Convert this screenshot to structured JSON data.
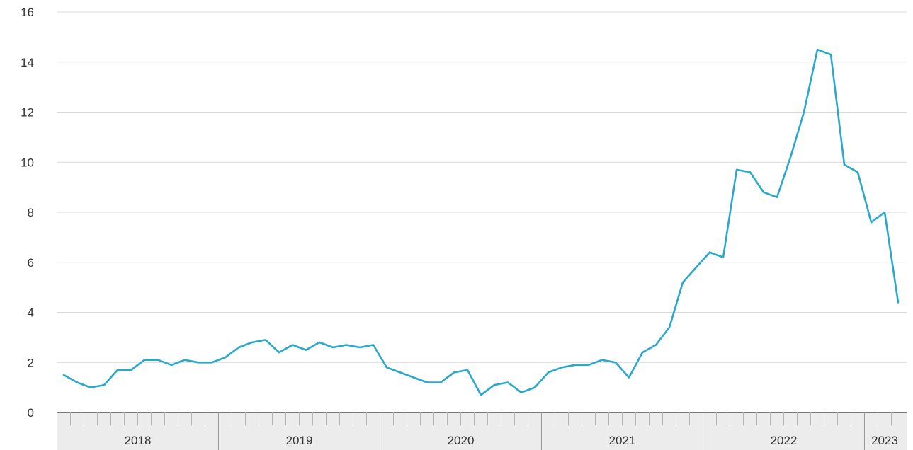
{
  "chart_data": {
    "type": "line",
    "title": "",
    "xlabel": "",
    "ylabel": "",
    "ylim": [
      0,
      16
    ],
    "y_ticks": [
      "0",
      "2",
      "4",
      "6",
      "8",
      "10",
      "12",
      "14",
      "16"
    ],
    "x_axis_labels": [
      "2018",
      "2019",
      "2020",
      "2021",
      "2022",
      "2023"
    ],
    "grid": "horizontal",
    "legend": "none",
    "line_color": "#29a8cc",
    "series": [
      {
        "x": [
          "2018-01",
          "2018-02",
          "2018-03",
          "2018-04",
          "2018-05",
          "2018-06",
          "2018-07",
          "2018-08",
          "2018-09",
          "2018-10",
          "2018-11",
          "2018-12",
          "2019-01",
          "2019-02",
          "2019-03",
          "2019-04",
          "2019-05",
          "2019-06",
          "2019-07",
          "2019-08",
          "2019-09",
          "2019-10",
          "2019-11",
          "2019-12",
          "2020-01",
          "2020-02",
          "2020-03",
          "2020-04",
          "2020-05",
          "2020-06",
          "2020-07",
          "2020-08",
          "2020-09",
          "2020-10",
          "2020-11",
          "2020-12",
          "2021-01",
          "2021-02",
          "2021-03",
          "2021-04",
          "2021-05",
          "2021-06",
          "2021-07",
          "2021-08",
          "2021-09",
          "2021-10",
          "2021-11",
          "2021-12",
          "2022-01",
          "2022-02",
          "2022-03",
          "2022-04",
          "2022-05",
          "2022-06",
          "2022-07",
          "2022-08",
          "2022-09",
          "2022-10",
          "2022-11",
          "2022-12",
          "2023-01",
          "2023-02",
          "2023-03"
        ],
        "values": [
          1.5,
          1.2,
          1.0,
          1.1,
          1.7,
          1.7,
          2.1,
          2.1,
          1.9,
          2.1,
          2.0,
          2.0,
          2.2,
          2.6,
          2.8,
          2.9,
          2.4,
          2.7,
          2.5,
          2.8,
          2.6,
          2.7,
          2.6,
          2.7,
          1.8,
          1.6,
          1.4,
          1.2,
          1.2,
          1.6,
          1.7,
          0.7,
          1.1,
          1.2,
          0.8,
          1.0,
          1.6,
          1.8,
          1.9,
          1.9,
          2.1,
          2.0,
          1.4,
          2.4,
          2.7,
          3.4,
          5.2,
          5.8,
          6.4,
          6.2,
          9.7,
          9.6,
          8.8,
          8.6,
          10.2,
          12.0,
          14.5,
          14.3,
          9.9,
          9.6,
          7.6,
          8.0,
          4.4
        ]
      }
    ]
  }
}
